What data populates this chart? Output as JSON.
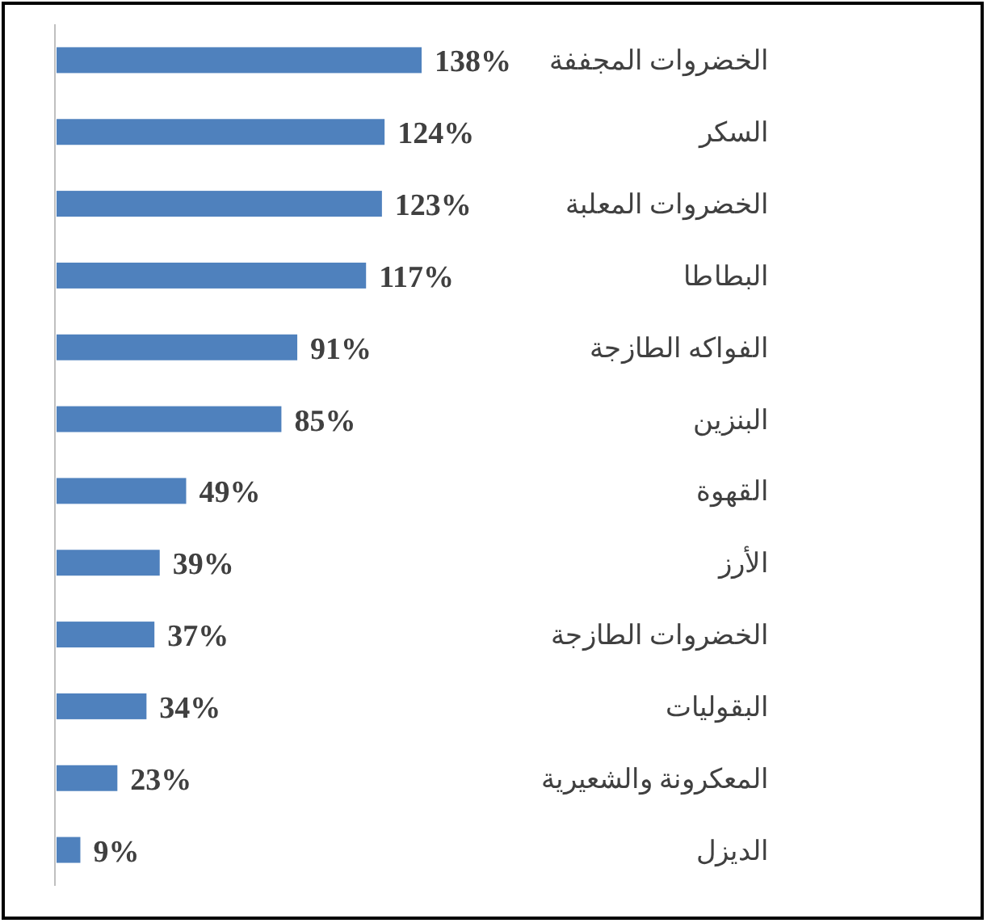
{
  "chart_data": {
    "type": "bar",
    "orientation": "horizontal",
    "color": "#4f81bd",
    "categories": [
      "الخضروات المجففة",
      "السكر",
      "الخضروات المعلبة",
      "البطاطا",
      "الفواكه الطازجة",
      "البنزين",
      "القهوة",
      "الأرز",
      "الخضروات الطازجة",
      "البقوليات",
      "المعكرونة والشعيرية",
      "الديزل"
    ],
    "values": [
      138,
      124,
      123,
      117,
      91,
      85,
      49,
      39,
      37,
      34,
      23,
      9
    ],
    "value_labels": [
      "138%",
      "124%",
      "123%",
      "117%",
      "91%",
      "85%",
      "49%",
      "39%",
      "37%",
      "34%",
      "23%",
      "9%"
    ]
  }
}
